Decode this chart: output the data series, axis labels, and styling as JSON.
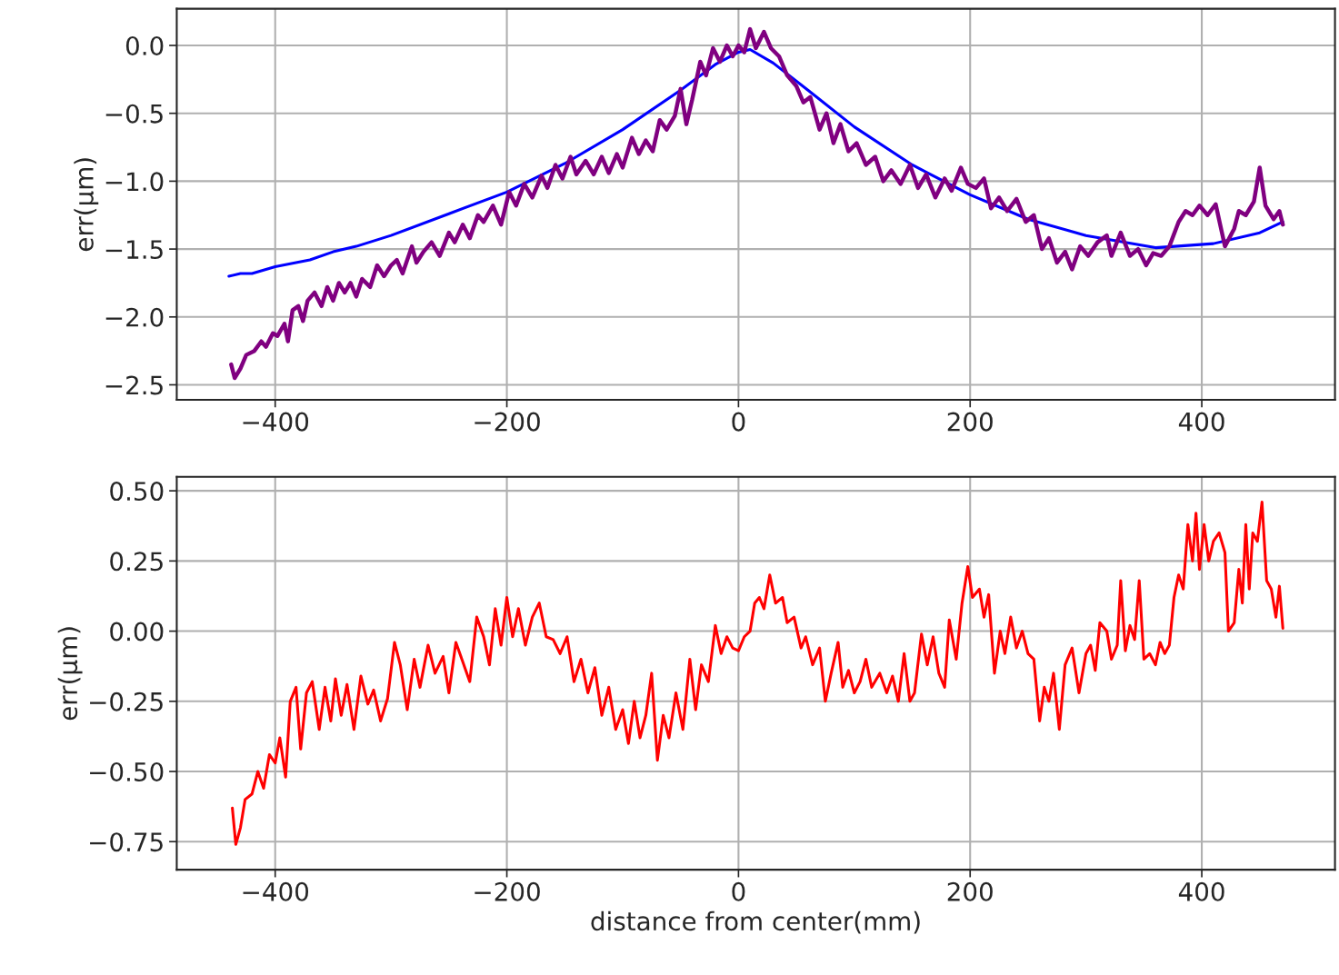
{
  "chart_data": [
    {
      "type": "line",
      "ylabel": "err(μm)",
      "xlim": [
        -485,
        515
      ],
      "ylim": [
        -2.61,
        0.27
      ],
      "grid": true,
      "xticks": [
        -400,
        -200,
        0,
        200,
        400
      ],
      "yticks": [
        {
          "value": 0,
          "label": "0.0"
        },
        {
          "value": -0.5,
          "label": "−0.5"
        },
        {
          "value": -1.0,
          "label": "−1.0"
        },
        {
          "value": -1.5,
          "label": "−1.5"
        },
        {
          "value": -2.0,
          "label": "−2.0"
        },
        {
          "value": -2.5,
          "label": "−2.5"
        }
      ],
      "series": [
        {
          "color": "#0000ff",
          "x": [
            -440,
            -430,
            -420,
            -400,
            -370,
            -350,
            -330,
            -300,
            -250,
            -200,
            -150,
            -100,
            -50,
            -20,
            0,
            10,
            30,
            60,
            100,
            150,
            200,
            250,
            300,
            360,
            410,
            450,
            470
          ],
          "values": [
            -1.7,
            -1.68,
            -1.68,
            -1.63,
            -1.58,
            -1.52,
            -1.48,
            -1.4,
            -1.24,
            -1.08,
            -0.87,
            -0.62,
            -0.33,
            -0.14,
            -0.05,
            -0.03,
            -0.13,
            -0.33,
            -0.6,
            -0.88,
            -1.1,
            -1.28,
            -1.4,
            -1.49,
            -1.46,
            -1.38,
            -1.3
          ]
        },
        {
          "color": "#800080",
          "x": [
            -438,
            -435,
            -430,
            -425,
            -418,
            -412,
            -408,
            -402,
            -398,
            -392,
            -389,
            -385,
            -380,
            -376,
            -372,
            -366,
            -360,
            -355,
            -350,
            -345,
            -340,
            -335,
            -330,
            -325,
            -318,
            -312,
            -306,
            -300,
            -295,
            -290,
            -282,
            -278,
            -272,
            -265,
            -258,
            -250,
            -245,
            -238,
            -232,
            -225,
            -220,
            -212,
            -205,
            -198,
            -192,
            -185,
            -178,
            -170,
            -165,
            -158,
            -152,
            -145,
            -140,
            -132,
            -125,
            -118,
            -112,
            -105,
            -100,
            -92,
            -86,
            -80,
            -74,
            -68,
            -62,
            -55,
            -50,
            -45,
            -40,
            -33,
            -28,
            -22,
            -16,
            -10,
            -5,
            0,
            5,
            10,
            15,
            22,
            28,
            35,
            42,
            50,
            56,
            62,
            70,
            76,
            82,
            88,
            95,
            102,
            110,
            118,
            125,
            132,
            140,
            148,
            155,
            162,
            170,
            178,
            184,
            192,
            198,
            205,
            212,
            218,
            225,
            232,
            240,
            248,
            255,
            262,
            268,
            275,
            282,
            288,
            295,
            302,
            310,
            318,
            322,
            330,
            338,
            345,
            352,
            358,
            365,
            372,
            380,
            386,
            392,
            398,
            405,
            412,
            420,
            428,
            432,
            438,
            445,
            450,
            455,
            462,
            467,
            470
          ],
          "values": [
            -2.35,
            -2.45,
            -2.38,
            -2.28,
            -2.25,
            -2.18,
            -2.22,
            -2.12,
            -2.14,
            -2.05,
            -2.18,
            -1.95,
            -1.92,
            -2.03,
            -1.88,
            -1.82,
            -1.92,
            -1.78,
            -1.88,
            -1.75,
            -1.82,
            -1.75,
            -1.85,
            -1.72,
            -1.78,
            -1.62,
            -1.7,
            -1.62,
            -1.58,
            -1.68,
            -1.48,
            -1.6,
            -1.52,
            -1.45,
            -1.55,
            -1.38,
            -1.45,
            -1.32,
            -1.42,
            -1.25,
            -1.3,
            -1.18,
            -1.32,
            -1.08,
            -1.18,
            -1.02,
            -1.12,
            -0.96,
            -1.05,
            -0.88,
            -0.98,
            -0.82,
            -0.95,
            -0.85,
            -0.95,
            -0.82,
            -0.94,
            -0.8,
            -0.9,
            -0.68,
            -0.8,
            -0.7,
            -0.78,
            -0.55,
            -0.62,
            -0.52,
            -0.32,
            -0.58,
            -0.4,
            -0.12,
            -0.22,
            -0.02,
            -0.12,
            0.0,
            -0.08,
            0.0,
            -0.05,
            0.12,
            -0.02,
            0.1,
            -0.02,
            -0.08,
            -0.22,
            -0.3,
            -0.42,
            -0.38,
            -0.62,
            -0.5,
            -0.72,
            -0.58,
            -0.78,
            -0.72,
            -0.88,
            -0.82,
            -1.0,
            -0.92,
            -1.02,
            -0.88,
            -1.05,
            -0.95,
            -1.12,
            -0.98,
            -1.07,
            -0.9,
            -1.02,
            -1.05,
            -0.98,
            -1.2,
            -1.12,
            -1.22,
            -1.13,
            -1.3,
            -1.25,
            -1.5,
            -1.42,
            -1.6,
            -1.52,
            -1.65,
            -1.48,
            -1.55,
            -1.45,
            -1.4,
            -1.55,
            -1.38,
            -1.55,
            -1.5,
            -1.62,
            -1.53,
            -1.55,
            -1.48,
            -1.3,
            -1.22,
            -1.25,
            -1.18,
            -1.25,
            -1.17,
            -1.48,
            -1.35,
            -1.22,
            -1.25,
            -1.15,
            -0.9,
            -1.18,
            -1.28,
            -1.22,
            -1.32
          ]
        }
      ]
    },
    {
      "type": "line",
      "ylabel": "err(μm)",
      "xlabel": "distance from center(mm)",
      "xlim": [
        -485,
        515
      ],
      "ylim": [
        -0.85,
        0.55
      ],
      "grid": true,
      "xticks": [
        -400,
        -200,
        0,
        200,
        400
      ],
      "yticks": [
        {
          "value": 0.5,
          "label": "0.50"
        },
        {
          "value": 0.25,
          "label": "0.25"
        },
        {
          "value": 0,
          "label": "0.00"
        },
        {
          "value": -0.25,
          "label": "−0.25"
        },
        {
          "value": -0.5,
          "label": "−0.50"
        },
        {
          "value": -0.75,
          "label": "−0.75"
        }
      ],
      "series": [
        {
          "color": "#ff0000",
          "x": [
            -437,
            -434,
            -430,
            -426,
            -420,
            -415,
            -410,
            -405,
            -400,
            -396,
            -391,
            -387,
            -382,
            -378,
            -373,
            -368,
            -362,
            -357,
            -352,
            -348,
            -343,
            -338,
            -332,
            -326,
            -320,
            -315,
            -309,
            -303,
            -297,
            -292,
            -286,
            -280,
            -275,
            -268,
            -262,
            -255,
            -250,
            -244,
            -238,
            -232,
            -226,
            -220,
            -215,
            -210,
            -205,
            -200,
            -195,
            -190,
            -184,
            -178,
            -172,
            -166,
            -160,
            -154,
            -148,
            -142,
            -136,
            -130,
            -124,
            -118,
            -112,
            -106,
            -100,
            -95,
            -90,
            -85,
            -80,
            -75,
            -70,
            -65,
            -60,
            -54,
            -48,
            -42,
            -37,
            -32,
            -26,
            -20,
            -15,
            -10,
            -5,
            0,
            5,
            10,
            14,
            18,
            22,
            27,
            32,
            38,
            42,
            48,
            54,
            58,
            64,
            70,
            75,
            80,
            86,
            90,
            95,
            100,
            105,
            110,
            115,
            122,
            128,
            133,
            138,
            143,
            148,
            152,
            158,
            163,
            168,
            173,
            178,
            182,
            188,
            193,
            198,
            202,
            208,
            212,
            216,
            221,
            226,
            230,
            235,
            240,
            245,
            250,
            255,
            260,
            264,
            268,
            272,
            277,
            282,
            288,
            294,
            300,
            304,
            308,
            312,
            318,
            322,
            327,
            330,
            334,
            338,
            342,
            346,
            350,
            355,
            360,
            364,
            368,
            372,
            376,
            380,
            384,
            388,
            392,
            395,
            398,
            402,
            406,
            410,
            415,
            420,
            423,
            428,
            432,
            435,
            438,
            441,
            444,
            448,
            452,
            456,
            460,
            464,
            467,
            470
          ],
          "values": [
            -0.63,
            -0.76,
            -0.7,
            -0.6,
            -0.58,
            -0.5,
            -0.56,
            -0.44,
            -0.47,
            -0.38,
            -0.52,
            -0.25,
            -0.2,
            -0.42,
            -0.22,
            -0.18,
            -0.35,
            -0.2,
            -0.32,
            -0.17,
            -0.3,
            -0.19,
            -0.35,
            -0.16,
            -0.26,
            -0.21,
            -0.32,
            -0.24,
            -0.04,
            -0.12,
            -0.28,
            -0.1,
            -0.2,
            -0.05,
            -0.15,
            -0.09,
            -0.22,
            -0.04,
            -0.11,
            -0.18,
            0.05,
            -0.02,
            -0.12,
            0.08,
            -0.05,
            0.12,
            -0.02,
            0.08,
            -0.05,
            0.05,
            0.1,
            -0.02,
            -0.03,
            -0.08,
            -0.02,
            -0.18,
            -0.1,
            -0.22,
            -0.13,
            -0.3,
            -0.2,
            -0.35,
            -0.28,
            -0.4,
            -0.25,
            -0.38,
            -0.3,
            -0.15,
            -0.46,
            -0.3,
            -0.38,
            -0.22,
            -0.35,
            -0.1,
            -0.28,
            -0.12,
            -0.18,
            0.02,
            -0.08,
            -0.02,
            -0.06,
            -0.07,
            -0.02,
            0.0,
            0.1,
            0.12,
            0.08,
            0.2,
            0.1,
            0.12,
            0.03,
            0.05,
            -0.06,
            -0.02,
            -0.12,
            -0.06,
            -0.25,
            -0.15,
            -0.04,
            -0.2,
            -0.14,
            -0.22,
            -0.18,
            -0.1,
            -0.2,
            -0.15,
            -0.22,
            -0.16,
            -0.25,
            -0.08,
            -0.25,
            -0.22,
            -0.01,
            -0.12,
            -0.02,
            -0.15,
            -0.2,
            0.04,
            -0.1,
            0.1,
            0.23,
            0.12,
            0.15,
            0.05,
            0.13,
            -0.15,
            0.0,
            -0.08,
            0.05,
            -0.06,
            0.0,
            -0.08,
            -0.1,
            -0.32,
            -0.2,
            -0.25,
            -0.15,
            -0.35,
            -0.12,
            -0.06,
            -0.22,
            -0.08,
            -0.05,
            -0.14,
            0.03,
            0.0,
            -0.1,
            -0.05,
            0.18,
            -0.07,
            0.02,
            -0.03,
            0.18,
            -0.1,
            -0.08,
            -0.12,
            -0.04,
            -0.08,
            -0.05,
            0.12,
            0.2,
            0.15,
            0.38,
            0.25,
            0.42,
            0.22,
            0.38,
            0.25,
            0.32,
            0.35,
            0.28,
            0.0,
            0.03,
            0.22,
            0.1,
            0.38,
            0.15,
            0.35,
            0.32,
            0.46,
            0.18,
            0.15,
            0.05,
            0.16,
            0.01
          ]
        }
      ]
    }
  ]
}
